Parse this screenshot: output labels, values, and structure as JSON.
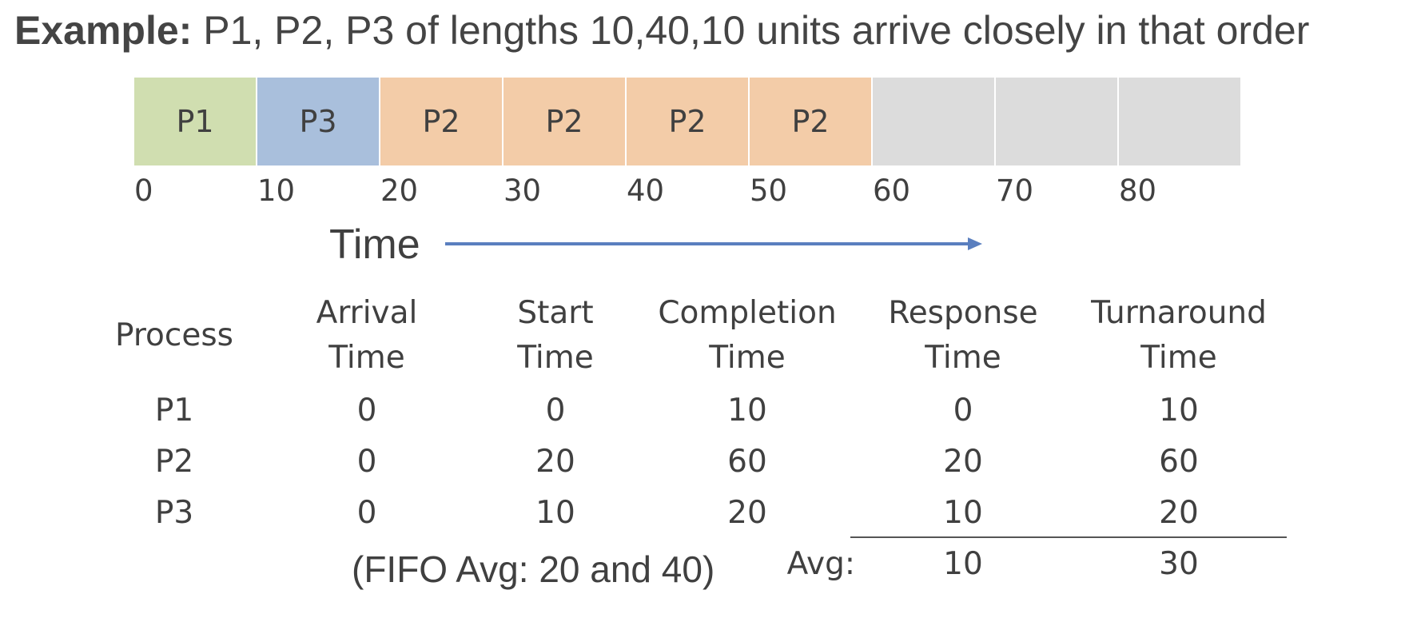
{
  "title": {
    "bold": "Example:",
    "rest": " P1, P2, P3 of lengths 10,40,10 units arrive closely in that order"
  },
  "timeline": {
    "slots": [
      {
        "label": "P1",
        "color": "#d0deb0"
      },
      {
        "label": "P3",
        "color": "#a9bfdc"
      },
      {
        "label": "P2",
        "color": "#f3cca8"
      },
      {
        "label": "P2",
        "color": "#f3cca8"
      },
      {
        "label": "P2",
        "color": "#f3cca8"
      },
      {
        "label": "P2",
        "color": "#f3cca8"
      },
      {
        "label": "",
        "color": "#dcdcdc"
      },
      {
        "label": "",
        "color": "#dcdcdc"
      },
      {
        "label": "",
        "color": "#dcdcdc"
      }
    ],
    "ticks": [
      "0",
      "10",
      "20",
      "30",
      "40",
      "50",
      "60",
      "70",
      "80"
    ],
    "axis_label": "Time",
    "arrow_color": "#5a7fbf"
  },
  "table": {
    "headers": [
      {
        "line1": "Process",
        "line2": ""
      },
      {
        "line1": "Arrival",
        "line2": "Time"
      },
      {
        "line1": "Start",
        "line2": "Time"
      },
      {
        "line1": "Completion",
        "line2": "Time"
      },
      {
        "line1": "Response",
        "line2": "Time"
      },
      {
        "line1": "Turnaround",
        "line2": "Time"
      }
    ],
    "rows": [
      [
        "P1",
        "0",
        "0",
        "10",
        "0",
        "10"
      ],
      [
        "P2",
        "0",
        "20",
        "60",
        "20",
        "60"
      ],
      [
        "P3",
        "0",
        "10",
        "20",
        "10",
        "20"
      ]
    ],
    "avg_label": "Avg:",
    "avg_response": "10",
    "avg_turnaround": "30",
    "fifo_note": "(FIFO Avg: 20 and 40)"
  }
}
